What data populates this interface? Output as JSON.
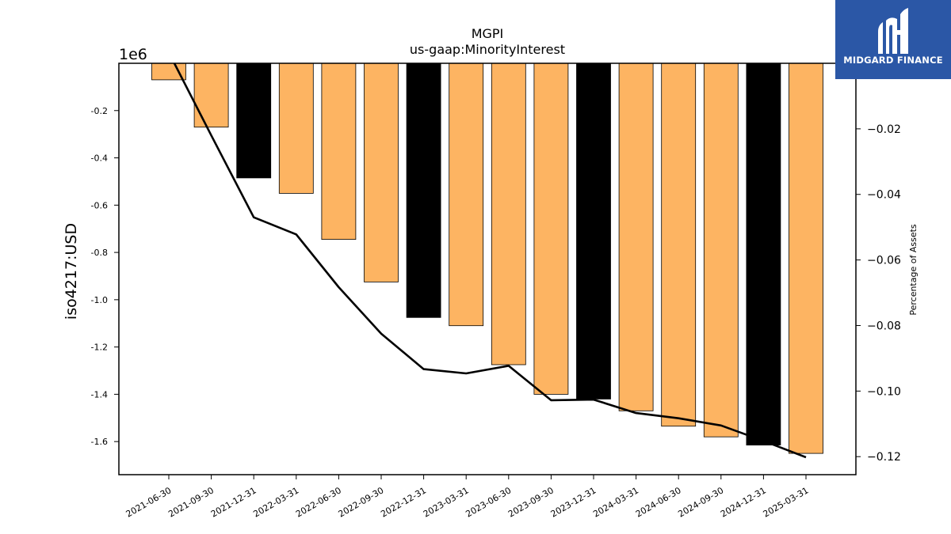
{
  "logo": {
    "text": "MIDGARD FINANCE"
  },
  "chart_data": {
    "type": "bar",
    "title": "MGPI",
    "subtitle": "us-gaap:MinorityInterest",
    "ylabel": "iso4217:USD",
    "y2label": "Percentage of Assets",
    "y_offset_label": "1e6",
    "ylim": [
      -1.74,
      0
    ],
    "y2lim": [
      -0.1255,
      0.0
    ],
    "yticks": [
      -0.2,
      -0.4,
      -0.6,
      -0.8,
      -1.0,
      -1.2,
      -1.4,
      -1.6
    ],
    "yticklabels": [
      "-0.2",
      "-0.4",
      "-0.6",
      "-0.8",
      "-1.0",
      "-1.2",
      "-1.4",
      "-1.6"
    ],
    "y2ticks": [
      -0.02,
      -0.04,
      -0.06,
      -0.08,
      -0.1,
      -0.12
    ],
    "y2ticklabels": [
      "−0.02",
      "−0.04",
      "−0.06",
      "−0.08",
      "−0.10",
      "−0.12"
    ],
    "categories": [
      "2021-06-30",
      "2021-09-30",
      "2021-12-31",
      "2022-03-31",
      "2022-06-30",
      "2022-09-30",
      "2022-12-31",
      "2023-03-31",
      "2023-06-30",
      "2023-09-30",
      "2023-12-31",
      "2024-03-31",
      "2024-06-30",
      "2024-09-30",
      "2024-12-31",
      "2025-03-31"
    ],
    "series": [
      {
        "kind": "bar",
        "unit": "1e6 USD",
        "values": [
          -0.07,
          -0.27,
          -0.485,
          -0.55,
          -0.745,
          -0.925,
          -1.075,
          -1.11,
          -1.275,
          -1.4,
          -1.42,
          -1.47,
          -1.535,
          -1.58,
          -1.615,
          -1.65
        ],
        "colors": [
          "#fdb462",
          "#fdb462",
          "#000000",
          "#fdb462",
          "#fdb462",
          "#fdb462",
          "#000000",
          "#fdb462",
          "#fdb462",
          "#fdb462",
          "#000000",
          "#fdb462",
          "#fdb462",
          "#fdb462",
          "#000000",
          "#fdb462"
        ]
      },
      {
        "kind": "line",
        "axis": "right",
        "color": "#000000",
        "values": [
          0.0,
          -0.022,
          -0.047,
          -0.0522,
          -0.0683,
          -0.0825,
          -0.0933,
          -0.0946,
          -0.0923,
          -0.1028,
          -0.1026,
          -0.1067,
          -0.1083,
          -0.1105,
          -0.1152,
          -0.1202
        ]
      }
    ],
    "grid": false,
    "colors": {
      "bar": "#fdb462",
      "highlight": "#000000",
      "line": "#000000",
      "logo_bg": "#2b57a6"
    }
  }
}
